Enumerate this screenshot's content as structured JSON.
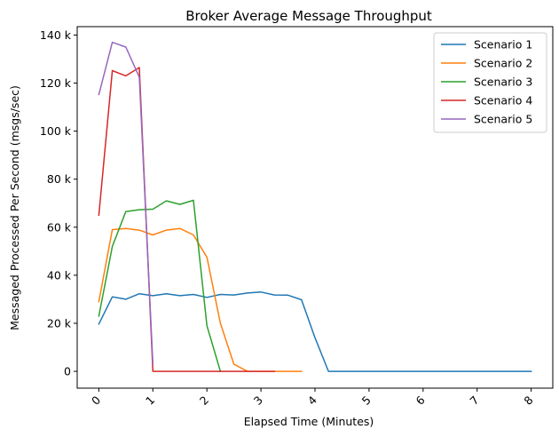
{
  "chart_data": {
    "type": "line",
    "title": "Broker Average Message Throughput",
    "xlabel": "Elapsed Time (Minutes)",
    "ylabel": "Messaged Processed Per Second (msgs/sec)",
    "xlim": [
      -0.4,
      8.4
    ],
    "ylim": [
      -7000,
      143500
    ],
    "xticks": [
      0,
      1,
      2,
      3,
      4,
      5,
      6,
      7,
      8
    ],
    "xtick_labels": [
      "0",
      "1",
      "2",
      "3",
      "4",
      "5",
      "6",
      "7",
      "8"
    ],
    "yticks": [
      0,
      20000,
      40000,
      60000,
      80000,
      100000,
      120000,
      140000
    ],
    "ytick_labels": [
      "0",
      "20 k",
      "40 k",
      "60 k",
      "80 k",
      "100 k",
      "120 k",
      "140 k"
    ],
    "grid": false,
    "legend_position": "top-right",
    "series": [
      {
        "name": "Scenario 1",
        "color": "#1f77b4",
        "x": [
          0,
          0.25,
          0.5,
          0.75,
          1.0,
          1.25,
          1.5,
          1.75,
          2.0,
          2.25,
          2.5,
          2.75,
          3.0,
          3.25,
          3.5,
          3.75,
          4.0,
          4.25,
          4.5,
          4.75,
          5.0,
          5.25,
          5.5,
          5.75,
          6.0,
          6.25,
          6.5,
          6.75,
          7.0,
          7.25,
          7.5,
          7.75,
          8.0
        ],
        "y": [
          19700,
          31000,
          30000,
          32300,
          31500,
          32300,
          31500,
          32000,
          30800,
          32000,
          31800,
          32600,
          33000,
          31800,
          31700,
          29800,
          14000,
          0,
          0,
          0,
          0,
          0,
          0,
          0,
          0,
          0,
          0,
          0,
          0,
          0,
          0,
          0,
          0
        ]
      },
      {
        "name": "Scenario 2",
        "color": "#ff7f0e",
        "x": [
          0,
          0.25,
          0.5,
          0.75,
          1.0,
          1.25,
          1.5,
          1.75,
          2.0,
          2.25,
          2.5,
          2.75,
          3.0,
          3.25,
          3.5,
          3.75
        ],
        "y": [
          29000,
          59000,
          59500,
          58800,
          56800,
          58800,
          59500,
          56800,
          47500,
          20000,
          3000,
          0,
          0,
          0,
          0,
          0
        ]
      },
      {
        "name": "Scenario 3",
        "color": "#2ca02c",
        "x": [
          0,
          0.25,
          0.5,
          0.75,
          1.0,
          1.25,
          1.5,
          1.75,
          2.0,
          2.25
        ],
        "y": [
          23000,
          52000,
          66500,
          67300,
          67500,
          71000,
          69500,
          71200,
          19000,
          0
        ]
      },
      {
        "name": "Scenario 4",
        "color": "#d62728",
        "x": [
          0,
          0.25,
          0.5,
          0.75,
          1.0,
          1.25,
          1.5,
          1.75,
          2.0,
          2.25,
          2.5,
          2.75,
          3.0,
          3.25
        ],
        "y": [
          65000,
          125200,
          123000,
          126500,
          0,
          0,
          0,
          0,
          0,
          0,
          0,
          0,
          0,
          0
        ]
      },
      {
        "name": "Scenario 5",
        "color": "#9467bd",
        "x": [
          0,
          0.25,
          0.5,
          0.75,
          1.0
        ],
        "y": [
          115200,
          137000,
          135000,
          122500,
          3000
        ]
      }
    ]
  }
}
